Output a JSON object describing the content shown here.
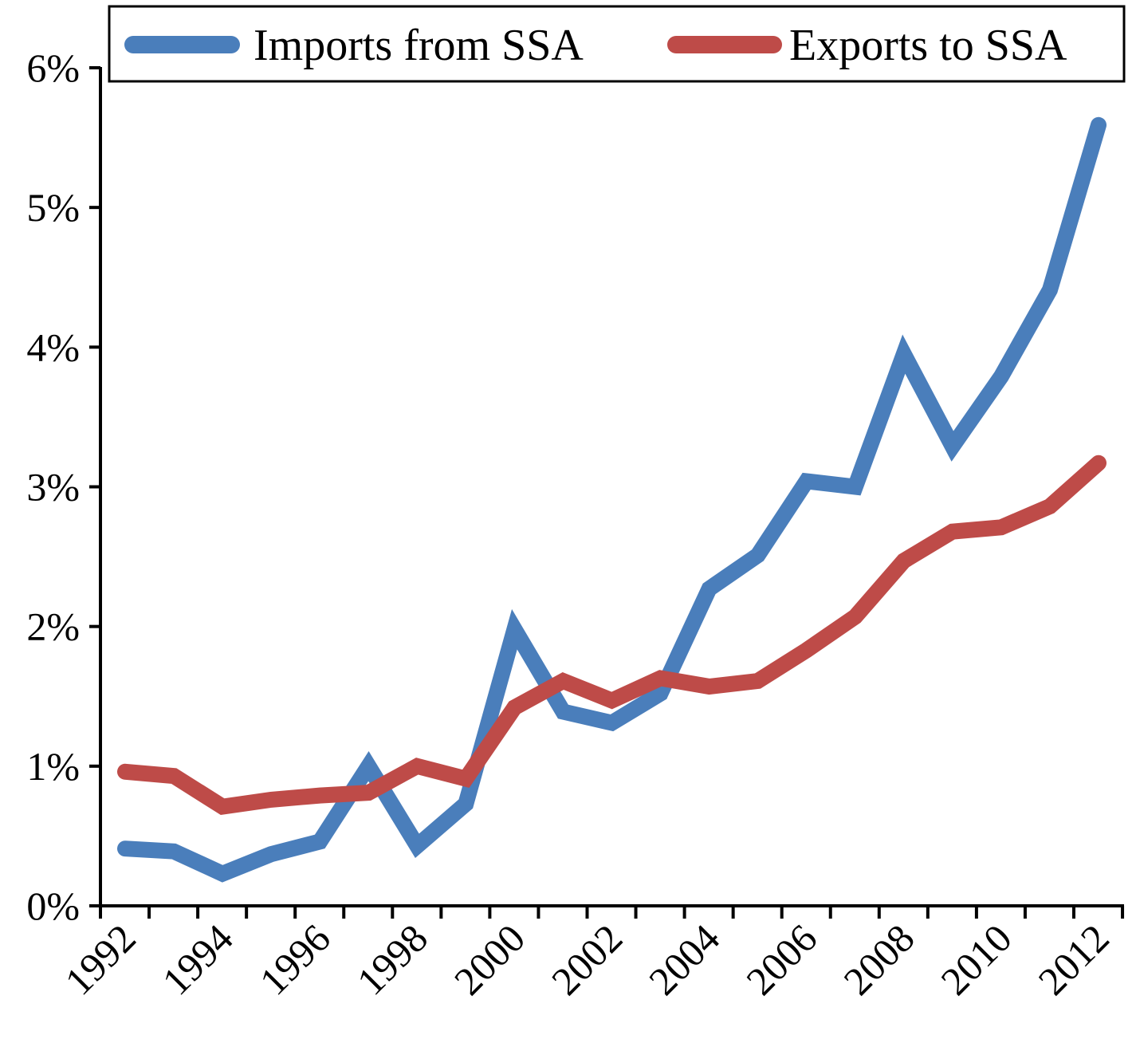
{
  "chart_data": {
    "type": "line",
    "x": [
      1992,
      1993,
      1994,
      1995,
      1996,
      1997,
      1998,
      1999,
      2000,
      2001,
      2002,
      2003,
      2004,
      2005,
      2006,
      2007,
      2008,
      2009,
      2010,
      2011,
      2012
    ],
    "xticklabels": [
      "1992",
      "1994",
      "1996",
      "1998",
      "2000",
      "2002",
      "2004",
      "2006",
      "2008",
      "2010",
      "2012"
    ],
    "yticklabels": [
      "0%",
      "1%",
      "2%",
      "3%",
      "4%",
      "5%",
      "6%"
    ],
    "ylim": [
      0,
      6
    ],
    "y_unit": "percent",
    "grid": false,
    "legend_position": "top",
    "series": [
      {
        "name": "Imports from SSA",
        "color": "#4a7ebb",
        "values": [
          0.41,
          0.39,
          0.23,
          0.37,
          0.46,
          1.0,
          0.43,
          0.73,
          1.98,
          1.39,
          1.31,
          1.52,
          2.27,
          2.51,
          3.04,
          3.0,
          3.95,
          3.29,
          3.79,
          4.41,
          5.59
        ]
      },
      {
        "name": "Exports to SSA",
        "color": "#be4b48",
        "values": [
          0.96,
          0.93,
          0.71,
          0.76,
          0.79,
          0.81,
          1.0,
          0.91,
          1.42,
          1.61,
          1.47,
          1.63,
          1.57,
          1.61,
          1.83,
          2.07,
          2.47,
          2.68,
          2.71,
          2.86,
          3.17
        ]
      }
    ]
  }
}
